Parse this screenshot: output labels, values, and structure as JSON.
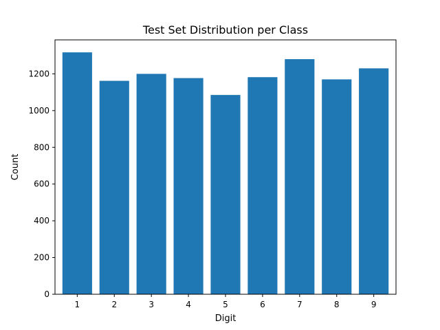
{
  "chart_data": {
    "type": "bar",
    "title": "Test Set Distribution per Class",
    "xlabel": "Digit",
    "ylabel": "Count",
    "categories": [
      "1",
      "2",
      "3",
      "4",
      "5",
      "6",
      "7",
      "8",
      "9"
    ],
    "values": [
      1317,
      1162,
      1200,
      1177,
      1085,
      1182,
      1280,
      1170,
      1230
    ],
    "ylim": [
      0,
      1385
    ],
    "yticks": [
      0,
      200,
      400,
      600,
      800,
      1000,
      1200
    ],
    "bar_color": "#1f77b4",
    "grid": false
  }
}
